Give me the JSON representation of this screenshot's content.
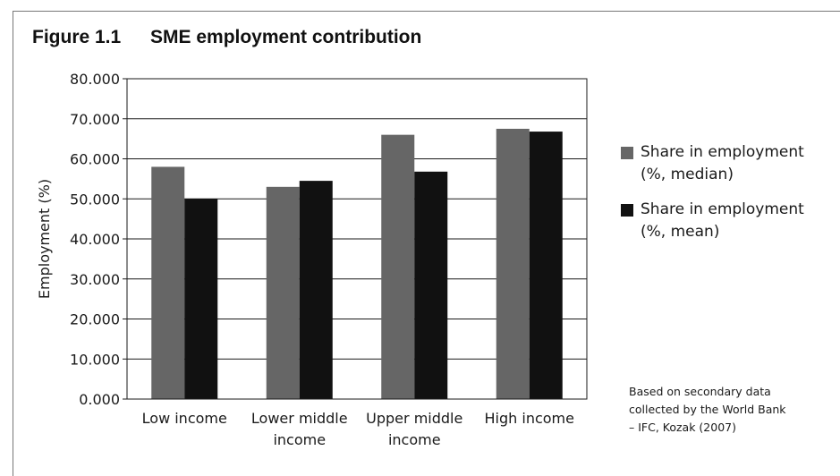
{
  "figure": {
    "label": "Figure 1.1",
    "title": "SME employment contribution",
    "note_lines": [
      "Based on secondary data",
      "collected by the World Bank",
      "– IFC, Kozak (2007)"
    ]
  },
  "chart_data": {
    "type": "bar",
    "title": "SME employment contribution",
    "xlabel": "",
    "ylabel": "Employment (%)",
    "ylim": [
      0,
      80
    ],
    "yticks": [
      "0.000",
      "10.000",
      "20.000",
      "30.000",
      "40.000",
      "50.000",
      "60.000",
      "70.000",
      "80.000"
    ],
    "categories": [
      [
        "Low income"
      ],
      [
        "Lower middle",
        "income"
      ],
      [
        "Upper middle",
        "income"
      ],
      [
        "High income"
      ]
    ],
    "series": [
      {
        "name": "Share in employment (%, median)",
        "legend_lines": [
          "Share in employment",
          "(%, median)"
        ],
        "color": "#666666",
        "values": [
          58.0,
          53.0,
          66.0,
          67.5
        ]
      },
      {
        "name": "Share in employment (%, mean)",
        "legend_lines": [
          "Share in employment",
          "(%, mean)"
        ],
        "color": "#111111",
        "values": [
          50.0,
          54.5,
          56.8,
          66.8
        ]
      }
    ],
    "grid": true,
    "legend_position": "right"
  }
}
